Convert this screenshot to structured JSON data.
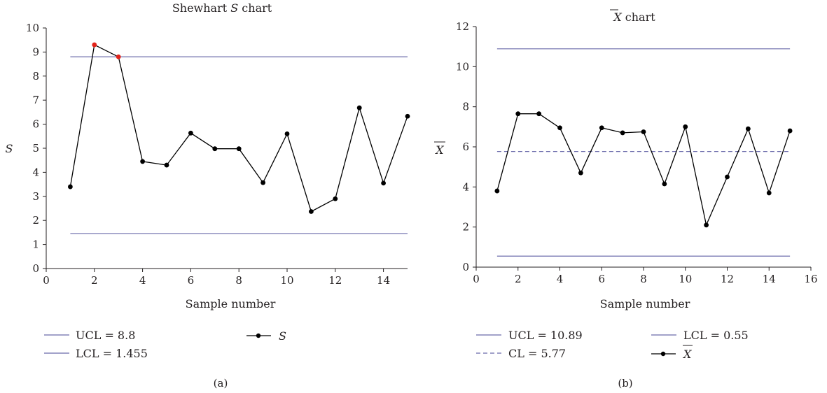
{
  "colors": {
    "limit_line": "#6a6aaa",
    "series_line": "#000000",
    "point": "#000000",
    "out_of_control_point": "#e2231a",
    "axis": "#231f20"
  },
  "chart_data": [
    {
      "type": "line",
      "title_prefix": "Shewhart ",
      "title_symbol": "S",
      "title_suffix": " chart",
      "xlabel": "Sample number",
      "ylabel": "S",
      "xlim": [
        0,
        15
      ],
      "ylim": [
        0,
        10
      ],
      "xticks": [
        0,
        2,
        4,
        6,
        8,
        10,
        12,
        14
      ],
      "yticks": [
        0,
        1,
        2,
        3,
        4,
        5,
        6,
        7,
        8,
        9,
        10
      ],
      "x": [
        1,
        2,
        3,
        4,
        5,
        6,
        7,
        8,
        9,
        10,
        11,
        12,
        13,
        14,
        15
      ],
      "series": [
        {
          "name": "S",
          "values": [
            3.4,
            9.3,
            8.8,
            4.45,
            4.3,
            5.63,
            4.98,
            4.98,
            3.57,
            5.6,
            2.37,
            2.9,
            6.68,
            3.55,
            6.33
          ]
        }
      ],
      "out_of_control_x": [
        2,
        3
      ],
      "limits": [
        {
          "label": "UCL = 8.8",
          "value": 8.8,
          "style": "solid"
        },
        {
          "label": "LCL = 1.455",
          "value": 1.455,
          "style": "solid"
        }
      ],
      "legend": [
        "UCL = 8.8",
        "LCL = 1.455",
        "S"
      ],
      "grid": false,
      "legend_position": "bottom",
      "panel_label": "(a)"
    },
    {
      "type": "line",
      "title_symbol": "X",
      "title_suffix": " chart",
      "xlabel": "Sample number",
      "ylabel": "X",
      "xlim": [
        0,
        16
      ],
      "ylim": [
        0,
        12
      ],
      "xticks": [
        0,
        2,
        4,
        6,
        8,
        10,
        12,
        14,
        16
      ],
      "yticks": [
        0,
        2,
        4,
        6,
        8,
        10,
        12
      ],
      "x": [
        1,
        2,
        3,
        4,
        5,
        6,
        7,
        8,
        9,
        10,
        11,
        12,
        13,
        14,
        15
      ],
      "series": [
        {
          "name": "X",
          "values": [
            3.8,
            7.65,
            7.65,
            6.95,
            4.7,
            6.95,
            6.7,
            6.75,
            4.15,
            7.0,
            2.1,
            4.5,
            6.9,
            3.7,
            6.8
          ]
        }
      ],
      "limits": [
        {
          "label": "UCL = 10.89",
          "value": 10.89,
          "style": "solid"
        },
        {
          "label": "CL = 5.77",
          "value": 5.77,
          "style": "dashed"
        },
        {
          "label": "LCL = 0.55",
          "value": 0.55,
          "style": "solid"
        }
      ],
      "legend": [
        "UCL = 10.89",
        "LCL = 0.55",
        "CL = 5.77",
        "X"
      ],
      "grid": false,
      "legend_position": "bottom",
      "panel_label": "(b)"
    }
  ]
}
